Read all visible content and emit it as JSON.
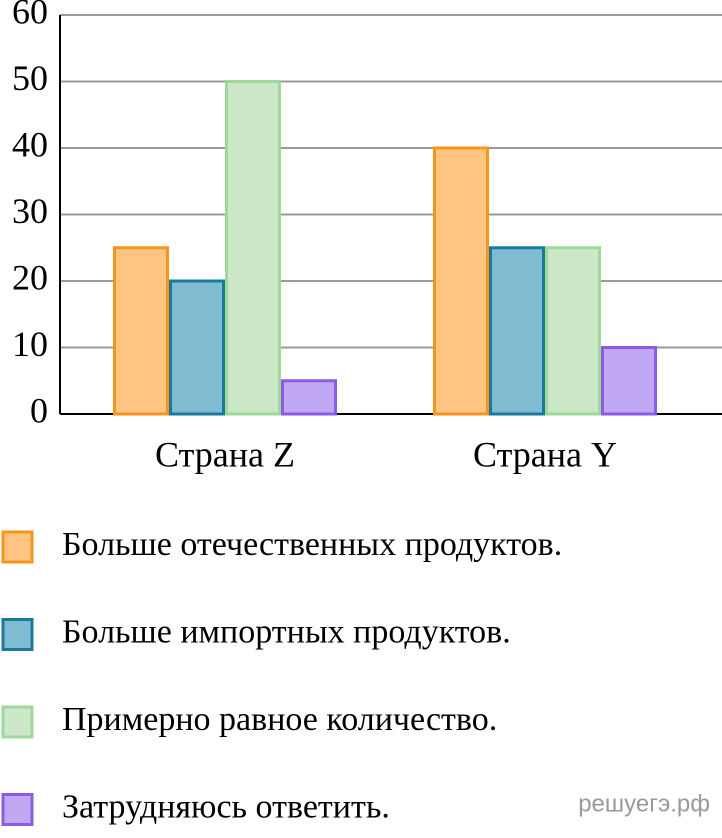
{
  "chart_data": {
    "type": "bar",
    "categories": [
      "Страна Z",
      "Страна Y"
    ],
    "series": [
      {
        "name": "Больше отечественных продуктов.",
        "color": "#fdc482",
        "edgecolor": "#f7941d",
        "values": [
          25,
          40
        ]
      },
      {
        "name": "Больше импортных продуктов.",
        "color": "#7fbcd2",
        "edgecolor": "#1b7a9c",
        "values": [
          20,
          25
        ]
      },
      {
        "name": "Примерно равное количество.",
        "color": "#cce8c8",
        "edgecolor": "#9fd99a",
        "values": [
          50,
          25
        ]
      },
      {
        "name": "Затрудняюсь ответить.",
        "color": "#c0a8f5",
        "edgecolor": "#8a5ce6",
        "values": [
          5,
          10
        ]
      }
    ],
    "ylim": [
      0,
      60
    ],
    "yticks": [
      0,
      10,
      20,
      30,
      40,
      50,
      60
    ],
    "grid": true,
    "watermark": "решуегэ.рф"
  }
}
